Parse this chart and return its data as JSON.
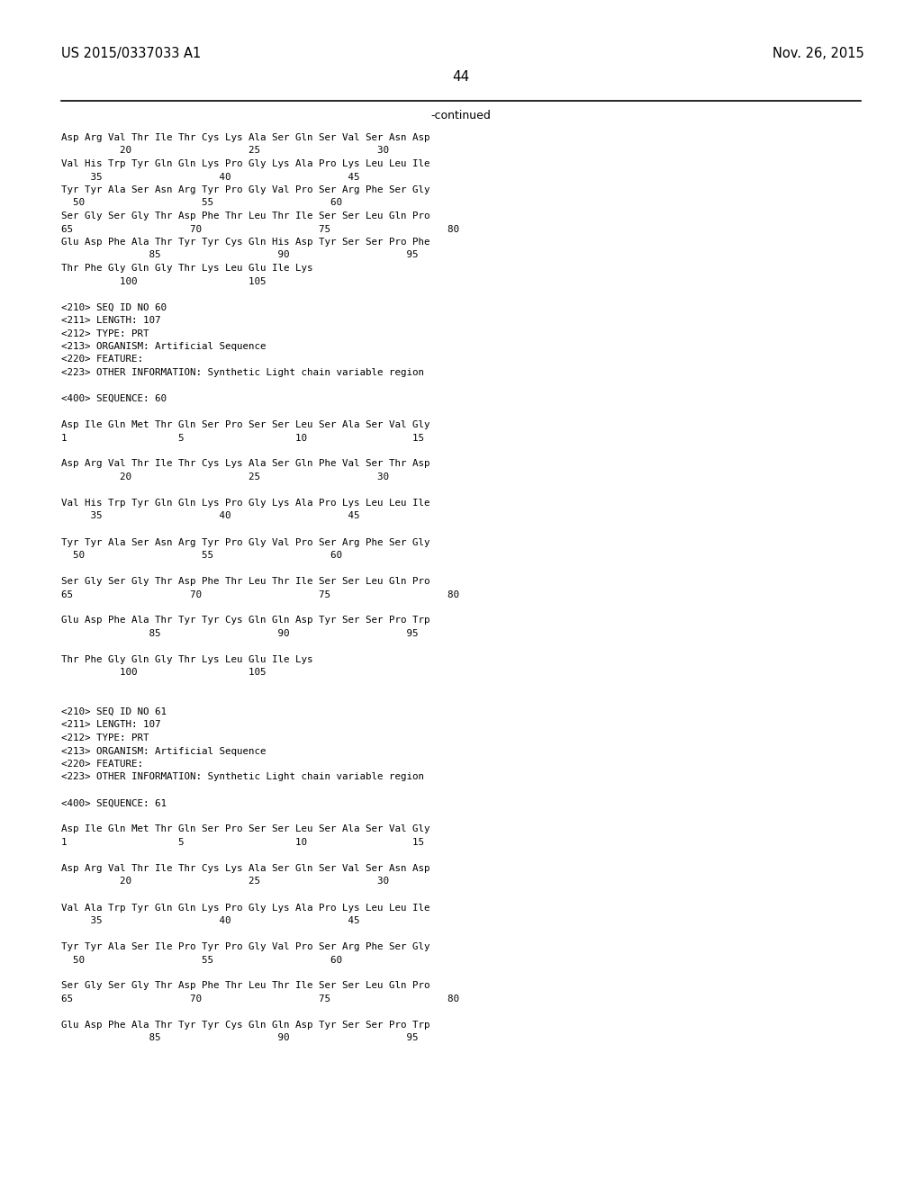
{
  "header_left": "US 2015/0337033 A1",
  "header_right": "Nov. 26, 2015",
  "page_number": "44",
  "continued_label": "-continued",
  "background_color": "#ffffff",
  "text_color": "#000000",
  "content_lines": [
    "Asp Arg Val Thr Ile Thr Cys Lys Ala Ser Gln Ser Val Ser Asn Asp",
    "          20                    25                    30",
    "Val His Trp Tyr Gln Gln Lys Pro Gly Lys Ala Pro Lys Leu Leu Ile",
    "     35                    40                    45",
    "Tyr Tyr Ala Ser Asn Arg Tyr Pro Gly Val Pro Ser Arg Phe Ser Gly",
    "  50                    55                    60",
    "Ser Gly Ser Gly Thr Asp Phe Thr Leu Thr Ile Ser Ser Leu Gln Pro",
    "65                    70                    75                    80",
    "Glu Asp Phe Ala Thr Tyr Tyr Cys Gln His Asp Tyr Ser Ser Pro Phe",
    "               85                    90                    95",
    "Thr Phe Gly Gln Gly Thr Lys Leu Glu Ile Lys",
    "          100                   105",
    "",
    "<210> SEQ ID NO 60",
    "<211> LENGTH: 107",
    "<212> TYPE: PRT",
    "<213> ORGANISM: Artificial Sequence",
    "<220> FEATURE:",
    "<223> OTHER INFORMATION: Synthetic Light chain variable region",
    "",
    "<400> SEQUENCE: 60",
    "",
    "Asp Ile Gln Met Thr Gln Ser Pro Ser Ser Leu Ser Ala Ser Val Gly",
    "1                   5                   10                  15",
    "",
    "Asp Arg Val Thr Ile Thr Cys Lys Ala Ser Gln Phe Val Ser Thr Asp",
    "          20                    25                    30",
    "",
    "Val His Trp Tyr Gln Gln Lys Pro Gly Lys Ala Pro Lys Leu Leu Ile",
    "     35                    40                    45",
    "",
    "Tyr Tyr Ala Ser Asn Arg Tyr Pro Gly Val Pro Ser Arg Phe Ser Gly",
    "  50                    55                    60",
    "",
    "Ser Gly Ser Gly Thr Asp Phe Thr Leu Thr Ile Ser Ser Leu Gln Pro",
    "65                    70                    75                    80",
    "",
    "Glu Asp Phe Ala Thr Tyr Tyr Cys Gln Gln Asp Tyr Ser Ser Pro Trp",
    "               85                    90                    95",
    "",
    "Thr Phe Gly Gln Gly Thr Lys Leu Glu Ile Lys",
    "          100                   105",
    "",
    "",
    "<210> SEQ ID NO 61",
    "<211> LENGTH: 107",
    "<212> TYPE: PRT",
    "<213> ORGANISM: Artificial Sequence",
    "<220> FEATURE:",
    "<223> OTHER INFORMATION: Synthetic Light chain variable region",
    "",
    "<400> SEQUENCE: 61",
    "",
    "Asp Ile Gln Met Thr Gln Ser Pro Ser Ser Leu Ser Ala Ser Val Gly",
    "1                   5                   10                  15",
    "",
    "Asp Arg Val Thr Ile Thr Cys Lys Ala Ser Gln Ser Val Ser Asn Asp",
    "          20                    25                    30",
    "",
    "Val Ala Trp Tyr Gln Gln Lys Pro Gly Lys Ala Pro Lys Leu Leu Ile",
    "     35                    40                    45",
    "",
    "Tyr Tyr Ala Ser Ile Pro Tyr Pro Gly Val Pro Ser Arg Phe Ser Gly",
    "  50                    55                    60",
    "",
    "Ser Gly Ser Gly Thr Asp Phe Thr Leu Thr Ile Ser Ser Leu Gln Pro",
    "65                    70                    75                    80",
    "",
    "Glu Asp Phe Ala Thr Tyr Tyr Cys Gln Gln Asp Tyr Ser Ser Pro Trp",
    "               85                    90                    95"
  ]
}
